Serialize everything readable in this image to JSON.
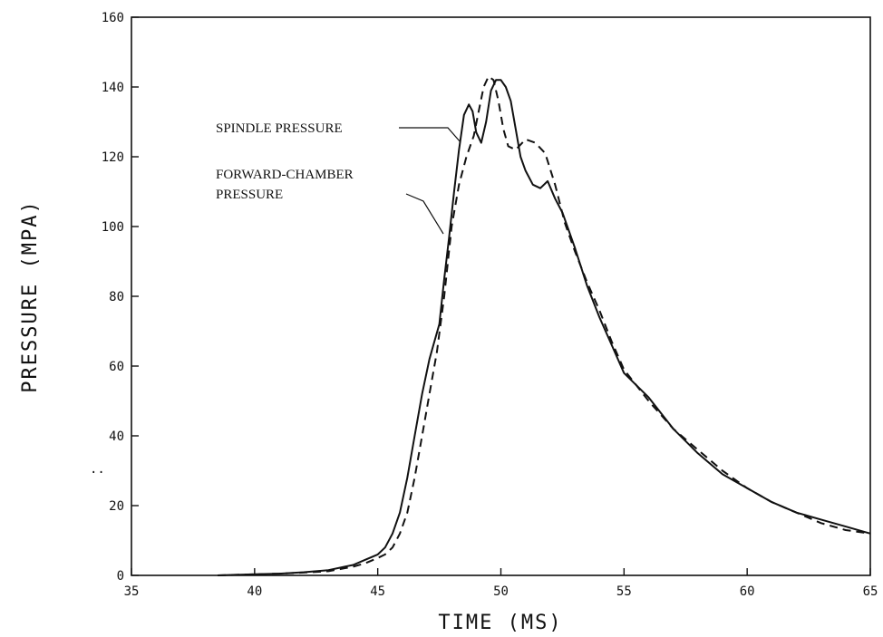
{
  "chart_data": {
    "type": "line",
    "title": "",
    "xlabel": "TIME (MS)",
    "ylabel": "PRESSURE (MPA)",
    "xlim": [
      35,
      65
    ],
    "ylim": [
      0,
      160
    ],
    "x_ticks": [
      35,
      40,
      45,
      50,
      55,
      60,
      65
    ],
    "y_ticks": [
      0,
      20,
      40,
      60,
      80,
      100,
      120,
      140,
      160
    ],
    "grid": false,
    "series": [
      {
        "name": "SPINDLE PRESSURE",
        "style": "solid",
        "color": "#111111",
        "x": [
          38.5,
          40,
          41,
          42,
          43,
          44,
          44.5,
          45,
          45.3,
          45.6,
          45.9,
          46.2,
          46.5,
          46.8,
          47.1,
          47.3,
          47.5,
          47.7,
          47.9,
          48.1,
          48.3,
          48.5,
          48.7,
          48.85,
          49.0,
          49.2,
          49.4,
          49.6,
          49.8,
          50.0,
          50.2,
          50.4,
          50.6,
          50.8,
          51.0,
          51.3,
          51.6,
          51.9,
          52.2,
          52.5,
          53.0,
          53.5,
          54.0,
          54.5,
          55.0,
          56.0,
          57.0,
          58.0,
          59.0,
          60.0,
          61.0,
          62.0,
          63.0,
          64.0,
          65.0
        ],
        "y": [
          0,
          0.3,
          0.5,
          0.9,
          1.5,
          3,
          4.5,
          6,
          8,
          12,
          18,
          28,
          40,
          52,
          62,
          67,
          72,
          85,
          97,
          110,
          122,
          132,
          135,
          133,
          127,
          124,
          130,
          139,
          142,
          142,
          140,
          136,
          128,
          120,
          116,
          112,
          111,
          113,
          108,
          104,
          94,
          83,
          74,
          66,
          58,
          51,
          42,
          35,
          29,
          25,
          21,
          18,
          16,
          14,
          12
        ]
      },
      {
        "name": "FORWARD-CHAMBER PRESSURE",
        "style": "dashed",
        "color": "#111111",
        "x": [
          38.5,
          40,
          41,
          42,
          43,
          44,
          44.5,
          45,
          45.3,
          45.6,
          45.9,
          46.2,
          46.5,
          46.8,
          47.1,
          47.4,
          47.7,
          48.0,
          48.3,
          48.6,
          48.9,
          49.1,
          49.3,
          49.5,
          49.7,
          49.9,
          50.1,
          50.3,
          50.6,
          51.0,
          51.4,
          51.8,
          52.2,
          52.6,
          53.0,
          53.5,
          54.0,
          54.5,
          55.0,
          56.0,
          57.0,
          58.0,
          59.0,
          60.0,
          61.0,
          62.0,
          63.0,
          64.0,
          65.0
        ],
        "y": [
          0,
          0.3,
          0.5,
          0.8,
          1.2,
          2.5,
          3.5,
          5,
          6,
          8,
          12,
          18,
          28,
          40,
          52,
          64,
          80,
          100,
          112,
          120,
          126,
          133,
          140,
          143,
          142,
          136,
          128,
          123,
          122,
          125,
          124,
          121,
          112,
          101,
          93,
          84,
          76,
          67,
          59,
          50,
          42,
          36,
          30,
          25,
          21,
          18,
          15,
          13,
          12
        ]
      }
    ],
    "annotations": [
      {
        "text": "SPINDLE PRESSURE"
      },
      {
        "text": "FORWARD-CHAMBER"
      },
      {
        "text": "PRESSURE"
      }
    ],
    "stray_mark": ".."
  }
}
